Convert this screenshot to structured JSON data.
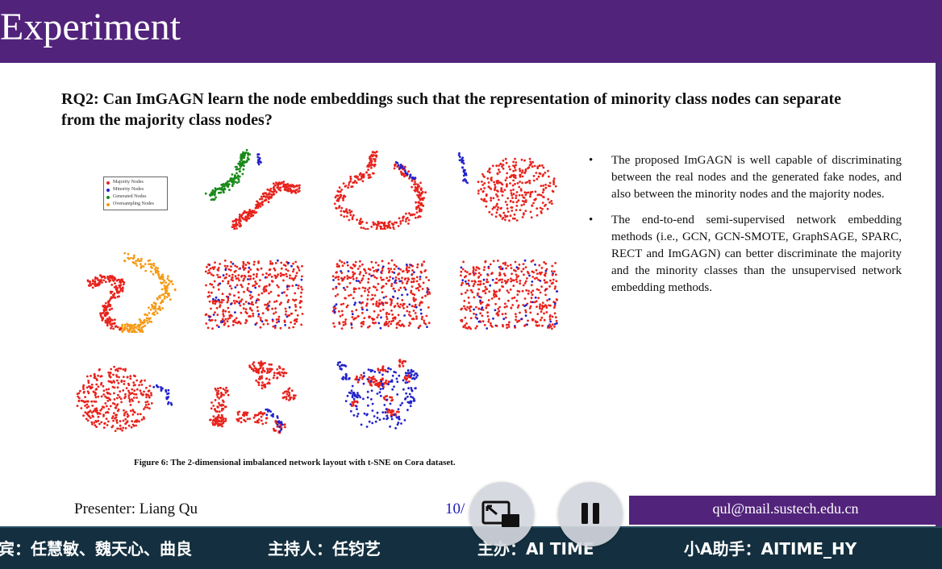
{
  "slide": {
    "title": "Experiment",
    "question": "RQ2: Can ImGAGN learn the node embeddings such that the representation of minority class nodes can separate from the majority class nodes?",
    "legend": [
      {
        "label": "Majority Nodes",
        "color": "#e8231d"
      },
      {
        "label": "Minority Nodes",
        "color": "#2222cc"
      },
      {
        "label": "Generated Nodes",
        "color": "#1a8a1a"
      },
      {
        "label": "Oversampling Nodes",
        "color": "#f59a17"
      }
    ],
    "figure_caption": "Figure 6: The 2-dimensional imbalanced network layout with t-SNE on Cora dataset.",
    "bullets": [
      "The proposed ImGAGN is well capable of discriminating between the real nodes and the generated fake nodes, and also between the minority nodes and the majority nodes.",
      "The end-to-end semi-supervised network embedding methods (i.e., GCN, GCN-SMOTE, GraphSAGE, SPARC, RECT and ImGAGN) can better discriminate the majority and the minority classes than the unsupervised network embedding methods."
    ],
    "presenter": "Presenter: Liang Qu",
    "page_number": "10/",
    "email": "qul@mail.sustech.edu.cn"
  },
  "ticker": {
    "guests": "嘉宾：任慧敏、魏天心、曲良",
    "host": "主持人：任钧艺",
    "organizer": "主办：AI TIME",
    "assistant": "小A助手：AITIME_HY"
  },
  "controls": {
    "pip_icon": "picture-in-picture-icon",
    "pause_icon": "pause-icon"
  }
}
